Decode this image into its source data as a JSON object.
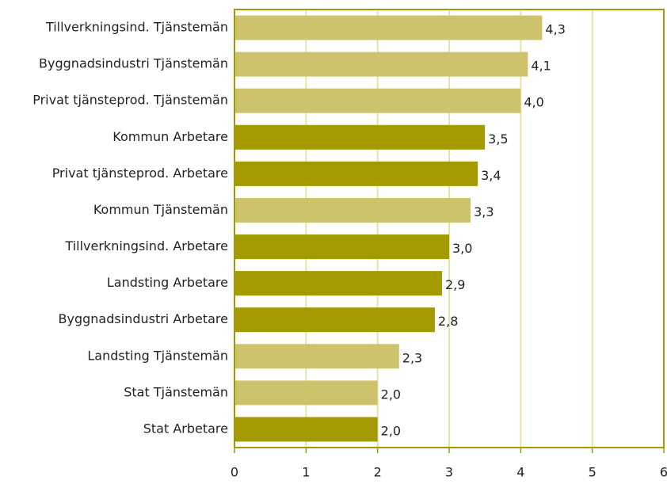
{
  "chart_data": {
    "type": "barh",
    "categories": [
      "Tillverkningsind. Tjänstemän",
      "Byggnadsindustri Tjänstemän",
      "Privat tjänsteprod. Tjänstemän",
      "Kommun Arbetare",
      "Privat tjänsteprod. Arbetare",
      "Kommun Tjänstemän",
      "Tillverkningsind. Arbetare",
      "Landsting Arbetare",
      "Byggnadsindustri Arbetare",
      "Landsting Tjänstemän",
      "Stat Tjänstemän",
      "Stat Arbetare"
    ],
    "values": [
      4.3,
      4.1,
      4.0,
      3.5,
      3.4,
      3.3,
      3.0,
      2.9,
      2.8,
      2.3,
      2.0,
      2.0
    ],
    "value_labels": [
      "4,3",
      "4,1",
      "4,0",
      "3,5",
      "3,4",
      "3,3",
      "3,0",
      "2,9",
      "2,8",
      "2,3",
      "2,0",
      "2,0"
    ],
    "colors": [
      "#cdc36c",
      "#cdc36c",
      "#cdc36c",
      "#a39a00",
      "#a39a00",
      "#cdc36c",
      "#a39a00",
      "#a39a00",
      "#a39a00",
      "#cdc36c",
      "#cdc36c",
      "#a39a00"
    ],
    "xlim": [
      0,
      6
    ],
    "xticks": [
      0,
      1,
      2,
      3,
      4,
      5,
      6
    ],
    "grid": true
  }
}
